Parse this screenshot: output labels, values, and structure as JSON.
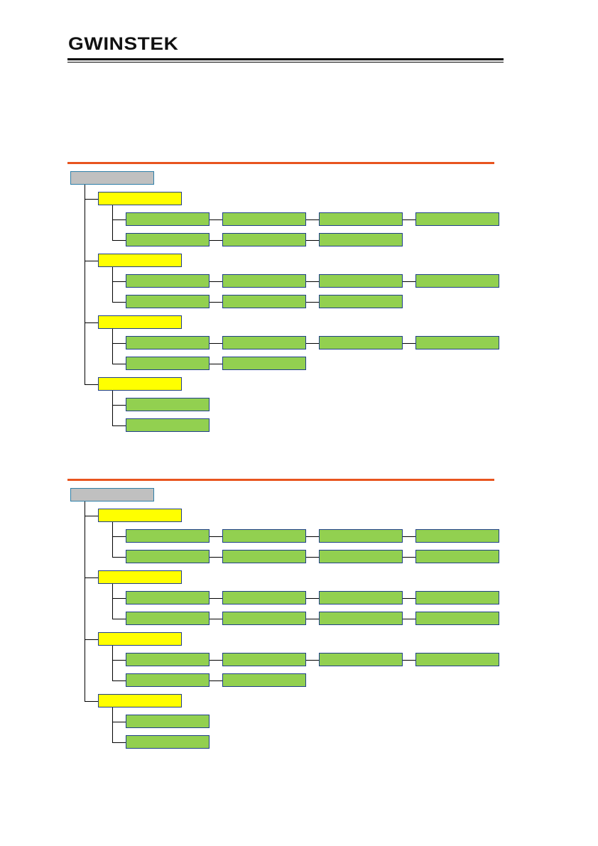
{
  "header": {
    "page_number": "",
    "logo": "GWINSTEK"
  },
  "colors": {
    "rule": "#e8541e",
    "root": "#c0c0c0",
    "category": "#ffff00",
    "leaf": "#92d050",
    "border": "#1f3f8a"
  },
  "trees": [
    {
      "root": "",
      "categories": [
        {
          "label": "",
          "rows": [
            [
              "",
              "",
              "",
              ""
            ],
            [
              "",
              "",
              ""
            ]
          ]
        },
        {
          "label": "",
          "rows": [
            [
              "",
              "",
              "",
              ""
            ],
            [
              "",
              "",
              ""
            ]
          ]
        },
        {
          "label": "",
          "rows": [
            [
              "",
              "",
              "",
              ""
            ],
            [
              "",
              ""
            ]
          ]
        },
        {
          "label": "",
          "rows": [
            [
              ""
            ],
            [
              ""
            ]
          ]
        }
      ]
    },
    {
      "root": "",
      "categories": [
        {
          "label": "",
          "rows": [
            [
              "",
              "",
              "",
              ""
            ],
            [
              "",
              "",
              "",
              ""
            ]
          ]
        },
        {
          "label": "",
          "rows": [
            [
              "",
              "",
              "",
              ""
            ],
            [
              "",
              "",
              "",
              ""
            ]
          ]
        },
        {
          "label": "",
          "rows": [
            [
              "",
              "",
              "",
              ""
            ],
            [
              "",
              ""
            ]
          ]
        },
        {
          "label": "",
          "rows": [
            [
              ""
            ],
            [
              ""
            ]
          ]
        }
      ]
    }
  ]
}
